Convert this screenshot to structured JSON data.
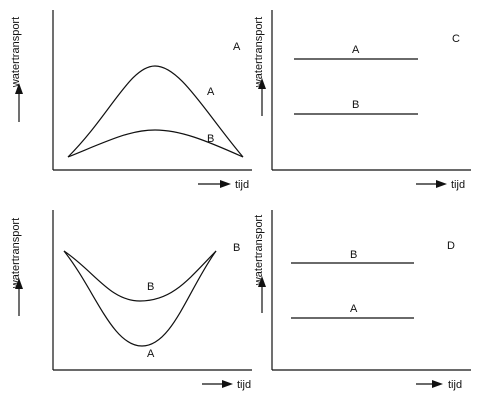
{
  "y_axis_label": "watertransport",
  "x_axis_label": "tijd",
  "panels": [
    {
      "id": "A",
      "panel_letter": "A",
      "curves": [
        {
          "label": "A",
          "shape": "rising then falling curve, high peak"
        },
        {
          "label": "B",
          "shape": "rising then falling curve, low peak"
        }
      ]
    },
    {
      "id": "C",
      "panel_letter": "C",
      "curves": [
        {
          "label": "A",
          "shape": "horizontal line, high level"
        },
        {
          "label": "B",
          "shape": "horizontal line, low level"
        }
      ]
    },
    {
      "id": "B",
      "panel_letter": "B",
      "curves": [
        {
          "label": "B",
          "shape": "falling then rising curve, shallow dip"
        },
        {
          "label": "A",
          "shape": "falling then rising curve, deep dip"
        }
      ]
    },
    {
      "id": "D",
      "panel_letter": "D",
      "curves": [
        {
          "label": "B",
          "shape": "horizontal line, high level"
        },
        {
          "label": "A",
          "shape": "horizontal line, low level"
        }
      ]
    }
  ]
}
